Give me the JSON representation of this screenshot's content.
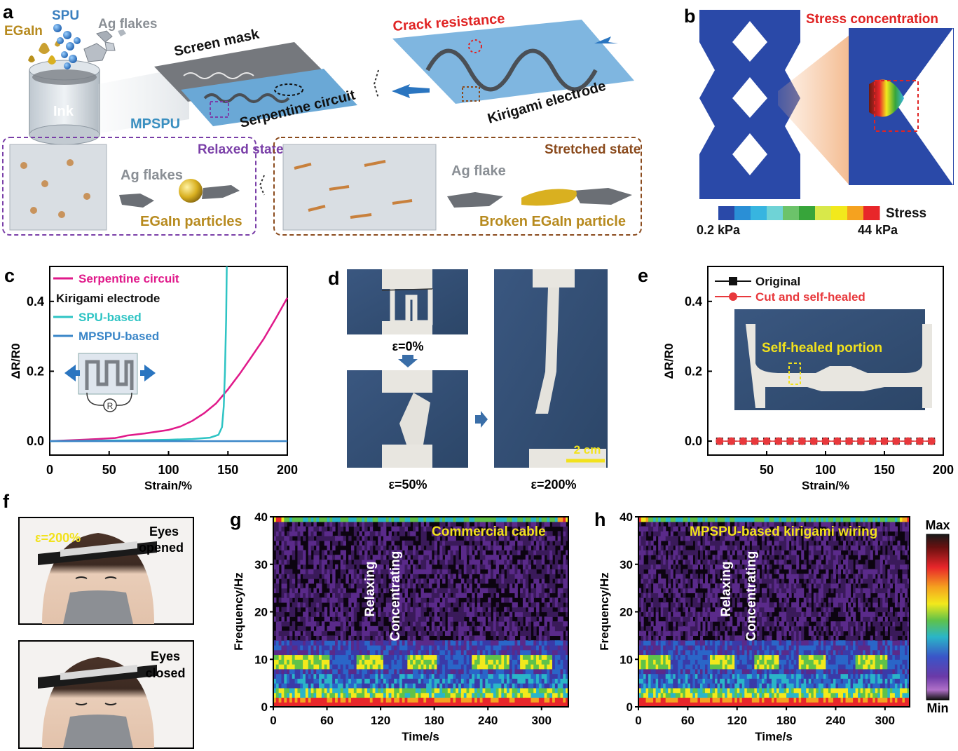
{
  "panels": {
    "a": {
      "letter": "a",
      "labels": {
        "egain": "EGaIn",
        "spu": "SPU",
        "ag_flakes_top": "Ag flakes",
        "ink": "Ink",
        "screen_mask": "Screen mask",
        "mpspu": "MPSPU",
        "serpentine_circuit": "Serpentine circuit",
        "crack_resistance": "Crack resistance",
        "kirigami_electrode": "Kirigami electrode",
        "relaxed_state": "Relaxed state",
        "ag_flakes_relaxed": "Ag flakes",
        "egain_particles": "EGaIn particles",
        "stretched_state": "Stretched state",
        "ag_flake_stretched": "Ag flake",
        "broken_particle": "Broken EGaIn particle"
      },
      "colors": {
        "purple": "#7a3fa8",
        "brown": "#8a4a1c",
        "gold": "#b78a1e",
        "blue_text": "#3a7fbf",
        "red": "#e02424"
      }
    },
    "b": {
      "letter": "b",
      "title": "Stress concentration",
      "colorbar_label": "Stress",
      "min_label": "0.2 kPa",
      "max_label": "44 kPa",
      "colorbar_colors": [
        "#2a49a8",
        "#2a8fd6",
        "#37b5e0",
        "#6fd3d6",
        "#6cc36a",
        "#37a53a",
        "#d8e84a",
        "#f2e91c",
        "#f5a21f",
        "#e8262a"
      ]
    },
    "c": {
      "letter": "c",
      "legend": {
        "serpentine": "Serpentine circuit",
        "kirigami": "Kirigami electrode",
        "spu": "SPU-based",
        "mpspu": "MPSPU-based"
      },
      "inset_symbol": "R"
    },
    "d": {
      "letter": "d",
      "labels": {
        "e0": "ε=0%",
        "e50": "ε=50%",
        "e200": "ε=200%",
        "scale": "2 cm"
      }
    },
    "e": {
      "letter": "e",
      "legend": {
        "original": "Original",
        "healed": "Cut and self-healed"
      },
      "inset_label": "Self-healed portion"
    },
    "f": {
      "letter": "f",
      "strain": "ε=200%",
      "opened_1": "Eyes",
      "opened_2": "opened",
      "closed_1": "Eyes",
      "closed_2": "closed"
    },
    "g": {
      "letter": "g",
      "title": "Commercial cable",
      "annot_relax": "Relaxing",
      "annot_conc": "Concentrating"
    },
    "h": {
      "letter": "h",
      "title": "MPSPU-based kirigami wiring",
      "annot_relax": "Relaxing",
      "annot_conc": "Concentrating",
      "colorbar_max": "Max",
      "colorbar_min": "Min"
    }
  },
  "chart_data": [
    {
      "id": "c",
      "type": "line",
      "xlabel": "Strain/%",
      "ylabel": "ΔR/R0",
      "xlim": [
        0,
        200
      ],
      "ylim": [
        -0.04,
        0.5
      ],
      "xticks": [
        0,
        50,
        100,
        150,
        200
      ],
      "yticks": [
        0.0,
        0.2,
        0.4
      ],
      "ytick_labels": [
        "0.0",
        "0.2",
        "0.4"
      ],
      "legend_placement": "top-left",
      "series": [
        {
          "name": "Serpentine circuit",
          "color": "#e0198a",
          "x": [
            0,
            20,
            40,
            55,
            60,
            65,
            80,
            100,
            110,
            120,
            130,
            140,
            150,
            160,
            170,
            180,
            190,
            200
          ],
          "y": [
            0,
            0.003,
            0.006,
            0.009,
            0.012,
            0.016,
            0.022,
            0.032,
            0.042,
            0.058,
            0.08,
            0.108,
            0.148,
            0.193,
            0.242,
            0.292,
            0.35,
            0.41
          ]
        },
        {
          "name": "SPU-based",
          "color": "#2ec4c4",
          "x": [
            0,
            60,
            100,
            120,
            135,
            142,
            145,
            146.5,
            147.5,
            148.5,
            149
          ],
          "y": [
            0,
            0.002,
            0.004,
            0.006,
            0.01,
            0.018,
            0.04,
            0.1,
            0.2,
            0.35,
            0.5
          ]
        },
        {
          "name": "MPSPU-based",
          "color": "#3a86c8",
          "x": [
            0,
            200
          ],
          "y": [
            0,
            0
          ]
        }
      ]
    },
    {
      "id": "e",
      "type": "scatter",
      "xlabel": "Strain/%",
      "ylabel": "ΔR/R0",
      "xlim": [
        0,
        200
      ],
      "ylim": [
        -0.04,
        0.5
      ],
      "xticks": [
        50,
        100,
        150,
        200
      ],
      "yticks": [
        0.0,
        0.2,
        0.4
      ],
      "ytick_labels": [
        "0.0",
        "0.2",
        "0.4"
      ],
      "legend_placement": "top-left",
      "series": [
        {
          "name": "Original",
          "color": "#111111",
          "marker": "square",
          "x": [
            10,
            20,
            30,
            40,
            50,
            60,
            70,
            80,
            90,
            100,
            110,
            120,
            130,
            140,
            150,
            160,
            170,
            180,
            190
          ],
          "y": [
            0,
            0,
            0,
            0,
            0,
            0,
            0,
            0,
            0,
            0,
            0,
            0,
            0,
            0,
            0,
            0,
            0,
            0,
            0
          ]
        },
        {
          "name": "Cut and self-healed",
          "color": "#e8383c",
          "marker": "circle",
          "x": [
            10,
            20,
            30,
            40,
            50,
            60,
            70,
            80,
            90,
            100,
            110,
            120,
            130,
            140,
            150,
            160,
            170,
            180,
            190
          ],
          "y": [
            0,
            0,
            0,
            0,
            0,
            0,
            0,
            0,
            0,
            0,
            0,
            0,
            0,
            0,
            0,
            0,
            0,
            0,
            0
          ]
        }
      ]
    },
    {
      "id": "g",
      "type": "heatmap",
      "xlabel": "Time/s",
      "ylabel": "Frequency/Hz",
      "xlim": [
        0,
        330
      ],
      "ylim": [
        0,
        40
      ],
      "xticks": [
        0,
        60,
        120,
        180,
        240,
        300
      ],
      "yticks": [
        0,
        10,
        20,
        30,
        40
      ],
      "band_hz": [
        8,
        11
      ],
      "alpha_active_intervals_s": [
        [
          0,
          60
        ],
        [
          92,
          122
        ],
        [
          150,
          182
        ],
        [
          220,
          262
        ],
        [
          275,
          310
        ]
      ]
    },
    {
      "id": "h",
      "type": "heatmap",
      "xlabel": "Time/s",
      "ylabel": "Frequency/Hz",
      "xlim": [
        0,
        330
      ],
      "ylim": [
        0,
        40
      ],
      "xticks": [
        0,
        60,
        120,
        180,
        240,
        300
      ],
      "yticks": [
        0,
        10,
        20,
        30,
        40
      ],
      "band_hz": [
        8,
        11
      ],
      "alpha_active_intervals_s": [
        [
          0,
          38
        ],
        [
          85,
          115
        ],
        [
          140,
          170
        ],
        [
          195,
          225
        ],
        [
          262,
          300
        ]
      ]
    }
  ]
}
